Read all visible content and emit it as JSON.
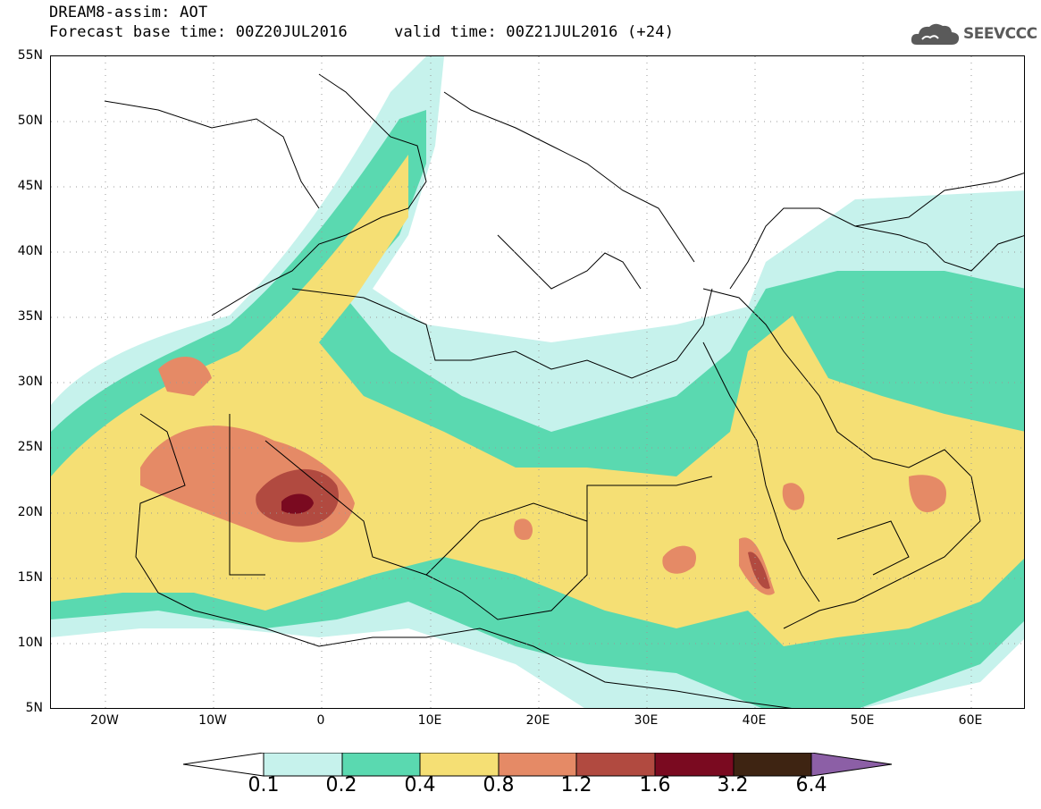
{
  "header": {
    "line1": "DREAM8-assim: AOT",
    "line2": "Forecast base time: 00Z20JUL2016     valid time: 00Z21JUL2016 (+24)"
  },
  "logo": {
    "text": "SEEVCCC",
    "icon": "cloud-icon"
  },
  "map": {
    "lat_labels": [
      "55N",
      "50N",
      "45N",
      "40N",
      "35N",
      "30N",
      "25N",
      "20N",
      "15N",
      "10N",
      "5N"
    ],
    "lon_labels": [
      "20W",
      "10W",
      "0",
      "10E",
      "20E",
      "30E",
      "40E",
      "50E",
      "60E"
    ],
    "colors": {
      "level1": "#c6f2ec",
      "level2": "#5ad9b0",
      "level3": "#f5df74",
      "level4": "#e58a66",
      "level5": "#b14a40",
      "level6": "#7a0a20",
      "level7": "#3e2412",
      "level8": "#8c5fa6"
    }
  },
  "colorbar": {
    "labels": [
      "0.1",
      "0.2",
      "0.4",
      "0.8",
      "1.2",
      "1.6",
      "3.2",
      "6.4"
    ]
  }
}
